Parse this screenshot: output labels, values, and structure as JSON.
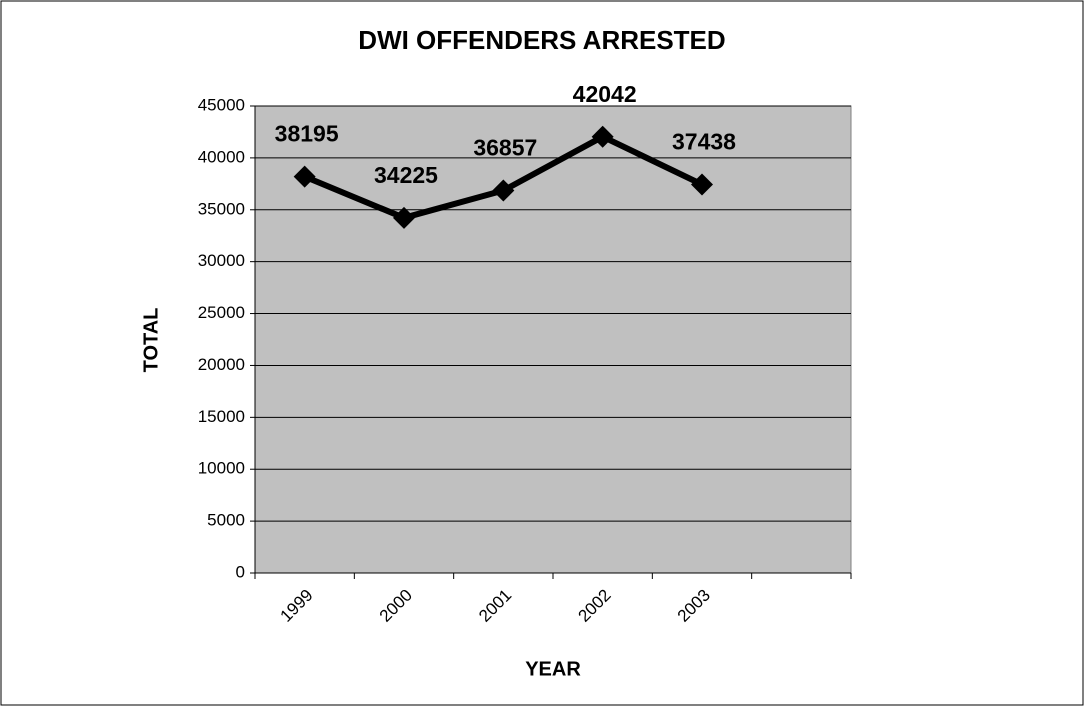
{
  "chart_data": {
    "type": "line",
    "title": "DWI OFFENDERS ARRESTED",
    "x_label": "YEAR",
    "y_label": "TOTAL",
    "categories": [
      "1999",
      "2000",
      "2001",
      "2002",
      "2003",
      null
    ],
    "values": [
      38195,
      34225,
      36857,
      42042,
      37438,
      null
    ],
    "color": "#000000",
    "ylim": [
      0,
      45000
    ],
    "yticks": [
      0,
      5000,
      10000,
      15000,
      20000,
      25000,
      30000,
      35000,
      40000,
      45000
    ],
    "grid": true
  }
}
